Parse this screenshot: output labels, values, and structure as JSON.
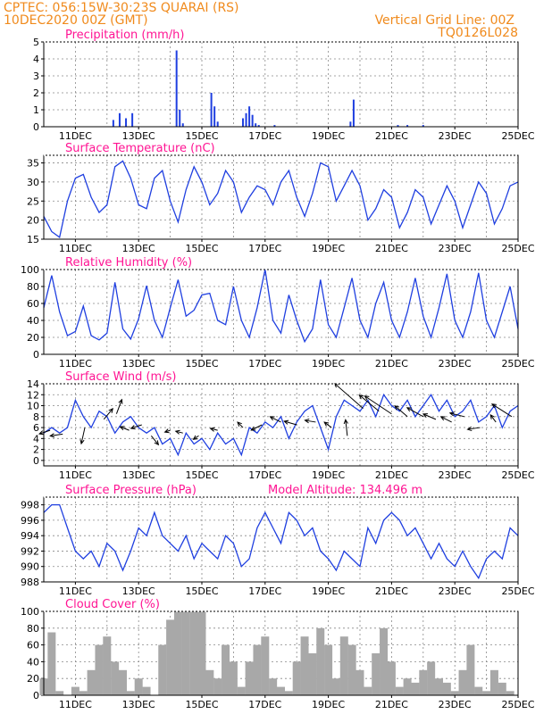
{
  "header": {
    "line1_left": "CPTEC:   056:15W-30:23S   QUARAI (RS)",
    "line2_left": "10DEC2020 00Z (GMT)",
    "line1_right": "Vertical Grid Line: 00Z",
    "line2_right": "TQ0126L028"
  },
  "date_ticks": [
    "11DEC",
    "13DEC",
    "15DEC",
    "17DEC",
    "19DEC",
    "21DEC",
    "23DEC",
    "25DEC"
  ],
  "colors": {
    "series": "#1f3fe0",
    "cloud": "#a8a8a8",
    "title": "#ff1493",
    "header": "#f08a1c"
  },
  "chart_data": [
    {
      "type": "bar",
      "title": "Precipitation (mm/h)",
      "ylim": [
        0,
        5
      ],
      "yticks": [
        0,
        1,
        2,
        3,
        4,
        5
      ],
      "x": [
        2.2,
        2.4,
        2.6,
        2.8,
        4.2,
        4.3,
        4.4,
        5.3,
        5.4,
        5.5,
        6.3,
        6.4,
        6.5,
        6.6,
        6.7,
        6.8,
        7.3,
        9.7,
        9.8,
        11.2,
        11.5,
        12.0
      ],
      "values": [
        0.4,
        0.8,
        0.5,
        0.8,
        4.5,
        1.0,
        0.2,
        2.0,
        1.2,
        0.3,
        0.5,
        0.8,
        1.2,
        0.7,
        0.2,
        0.1,
        0.1,
        0.3,
        1.6,
        0.1,
        0.1,
        0.1
      ]
    },
    {
      "type": "line",
      "title": "Surface Temperature (nC)",
      "ylim": [
        15,
        37
      ],
      "yticks": [
        15,
        20,
        25,
        30,
        35
      ],
      "x": [
        0,
        0.25,
        0.5,
        0.75,
        1.0,
        1.25,
        1.5,
        1.75,
        2.0,
        2.25,
        2.5,
        2.75,
        3.0,
        3.25,
        3.5,
        3.75,
        4.0,
        4.25,
        4.5,
        4.75,
        5.0,
        5.25,
        5.5,
        5.75,
        6.0,
        6.25,
        6.5,
        6.75,
        7.0,
        7.25,
        7.5,
        7.75,
        8.0,
        8.25,
        8.5,
        8.75,
        9.0,
        9.25,
        9.5,
        9.75,
        10.0,
        10.25,
        10.5,
        10.75,
        11.0,
        11.25,
        11.5,
        11.75,
        12.0,
        12.25,
        12.5,
        12.75,
        13.0,
        13.25,
        13.5,
        13.75,
        14.0,
        14.25,
        14.5,
        14.75,
        15.0
      ],
      "values": [
        21,
        17,
        15.5,
        25,
        31,
        32,
        26,
        22,
        24,
        34,
        35.5,
        31,
        24,
        23,
        31,
        33,
        25,
        19.5,
        28,
        34,
        30,
        24,
        27,
        33,
        30,
        22,
        26,
        29,
        28,
        24,
        30,
        33,
        26,
        21,
        27,
        35,
        34,
        25,
        29,
        33,
        29,
        20,
        23,
        28,
        26,
        18,
        22,
        28,
        26,
        19,
        24,
        29,
        25,
        18,
        24,
        30,
        27,
        19,
        23,
        29,
        30
      ]
    },
    {
      "type": "line",
      "title": "Relative Humidity (%)",
      "ylim": [
        0,
        100
      ],
      "yticks": [
        0,
        20,
        40,
        60,
        80,
        100
      ],
      "x": [
        0,
        0.25,
        0.5,
        0.75,
        1.0,
        1.25,
        1.5,
        1.75,
        2.0,
        2.25,
        2.5,
        2.75,
        3.0,
        3.25,
        3.5,
        3.75,
        4.0,
        4.25,
        4.5,
        4.75,
        5.0,
        5.25,
        5.5,
        5.75,
        6.0,
        6.25,
        6.5,
        6.75,
        7.0,
        7.25,
        7.5,
        7.75,
        8.0,
        8.25,
        8.5,
        8.75,
        9.0,
        9.25,
        9.5,
        9.75,
        10.0,
        10.25,
        10.5,
        10.75,
        11.0,
        11.25,
        11.5,
        11.75,
        12.0,
        12.25,
        12.5,
        12.75,
        13.0,
        13.25,
        13.5,
        13.75,
        14.0,
        14.25,
        14.5,
        14.75,
        15.0
      ],
      "values": [
        55,
        93,
        50,
        22,
        27,
        57,
        22,
        17,
        25,
        85,
        30,
        18,
        42,
        81,
        40,
        20,
        55,
        88,
        45,
        52,
        70,
        72,
        40,
        35,
        80,
        40,
        20,
        55,
        100,
        40,
        25,
        70,
        40,
        15,
        30,
        88,
        35,
        20,
        55,
        90,
        40,
        20,
        60,
        85,
        40,
        20,
        50,
        90,
        45,
        20,
        55,
        95,
        40,
        20,
        50,
        96,
        40,
        20,
        50,
        80,
        30
      ]
    },
    {
      "type": "line",
      "title": "Surface Wind (m/s)",
      "ylim": [
        -1,
        14
      ],
      "yticks": [
        0,
        2,
        4,
        6,
        8,
        10,
        12,
        14
      ],
      "x": [
        0,
        0.25,
        0.5,
        0.75,
        1.0,
        1.25,
        1.5,
        1.75,
        2.0,
        2.25,
        2.5,
        2.75,
        3.0,
        3.25,
        3.5,
        3.75,
        4.0,
        4.25,
        4.5,
        4.75,
        5.0,
        5.25,
        5.5,
        5.75,
        6.0,
        6.25,
        6.5,
        6.75,
        7.0,
        7.25,
        7.5,
        7.75,
        8.0,
        8.25,
        8.5,
        8.75,
        9.0,
        9.25,
        9.5,
        9.75,
        10.0,
        10.25,
        10.5,
        10.75,
        11.0,
        11.25,
        11.5,
        11.75,
        12.0,
        12.25,
        12.5,
        12.75,
        13.0,
        13.25,
        13.5,
        13.75,
        14.0,
        14.25,
        14.5,
        14.75,
        15.0
      ],
      "values": [
        5,
        6,
        5,
        6,
        11,
        8,
        6,
        9,
        8,
        5,
        7,
        8,
        6,
        5,
        6,
        3,
        4,
        1,
        5,
        3,
        4,
        2,
        5,
        3,
        4,
        1,
        6,
        5,
        7,
        6,
        8,
        4,
        7,
        9,
        10,
        6,
        2,
        8,
        11,
        10,
        9,
        11,
        8,
        12,
        10,
        9,
        11,
        8,
        10,
        12,
        9,
        11,
        8,
        9,
        11,
        7,
        8,
        10,
        6,
        9,
        10
      ]
    },
    {
      "type": "line",
      "title": "Surface Pressure (hPa)",
      "annotation": "Model Altitude: 134.496 m",
      "ylim": [
        988,
        999
      ],
      "yticks": [
        988,
        990,
        992,
        994,
        996,
        998
      ],
      "x": [
        0,
        0.25,
        0.5,
        0.75,
        1.0,
        1.25,
        1.5,
        1.75,
        2.0,
        2.25,
        2.5,
        2.75,
        3.0,
        3.25,
        3.5,
        3.75,
        4.0,
        4.25,
        4.5,
        4.75,
        5.0,
        5.25,
        5.5,
        5.75,
        6.0,
        6.25,
        6.5,
        6.75,
        7.0,
        7.25,
        7.5,
        7.75,
        8.0,
        8.25,
        8.5,
        8.75,
        9.0,
        9.25,
        9.5,
        9.75,
        10.0,
        10.25,
        10.5,
        10.75,
        11.0,
        11.25,
        11.5,
        11.75,
        12.0,
        12.25,
        12.5,
        12.75,
        13.0,
        13.25,
        13.5,
        13.75,
        14.0,
        14.25,
        14.5,
        14.75,
        15.0
      ],
      "values": [
        997,
        998,
        998,
        995,
        992,
        991,
        992,
        990,
        993,
        992,
        989.5,
        992,
        995,
        994,
        997,
        994,
        993,
        992,
        994,
        991,
        993,
        992,
        991,
        994,
        993,
        990,
        991,
        995,
        997,
        995,
        993,
        997,
        996,
        994,
        995,
        992,
        991,
        989.5,
        992,
        991,
        990,
        995,
        993,
        996,
        997,
        996,
        994,
        995,
        993,
        991,
        993,
        991,
        990,
        992,
        990,
        988.5,
        991,
        992,
        991,
        995,
        994
      ]
    },
    {
      "type": "area",
      "title": "Cloud Cover (%)",
      "ylim": [
        0,
        100
      ],
      "yticks": [
        0,
        20,
        40,
        60,
        80,
        100
      ],
      "x": [
        0,
        0.25,
        0.5,
        0.75,
        1.0,
        1.25,
        1.5,
        1.75,
        2.0,
        2.25,
        2.5,
        2.75,
        3.0,
        3.25,
        3.5,
        3.75,
        4.0,
        4.25,
        4.5,
        4.75,
        5.0,
        5.25,
        5.5,
        5.75,
        6.0,
        6.25,
        6.5,
        6.75,
        7.0,
        7.25,
        7.5,
        7.75,
        8.0,
        8.25,
        8.5,
        8.75,
        9.0,
        9.25,
        9.5,
        9.75,
        10.0,
        10.25,
        10.5,
        10.75,
        11.0,
        11.25,
        11.5,
        11.75,
        12.0,
        12.25,
        12.5,
        12.75,
        13.0,
        13.25,
        13.5,
        13.75,
        14.0,
        14.25,
        14.5,
        14.75,
        15.0
      ],
      "values": [
        20,
        75,
        5,
        0,
        10,
        5,
        30,
        60,
        70,
        40,
        30,
        5,
        20,
        10,
        0,
        60,
        90,
        100,
        100,
        100,
        100,
        30,
        20,
        60,
        40,
        10,
        40,
        60,
        70,
        20,
        10,
        5,
        40,
        70,
        50,
        80,
        60,
        20,
        70,
        60,
        30,
        10,
        50,
        80,
        40,
        10,
        20,
        15,
        30,
        40,
        20,
        15,
        5,
        30,
        60,
        10,
        5,
        30,
        15,
        5,
        0
      ]
    }
  ],
  "wind_arrows": [
    {
      "x": 0.2,
      "y": 5.5,
      "dx": -12,
      "dy": 4
    },
    {
      "x": 0.6,
      "y": 4.8,
      "dx": -14,
      "dy": 2
    },
    {
      "x": 1.3,
      "y": 6.0,
      "dx": -4,
      "dy": 18
    },
    {
      "x": 1.9,
      "y": 7.5,
      "dx": 10,
      "dy": -12
    },
    {
      "x": 2.3,
      "y": 8.5,
      "dx": 6,
      "dy": -16
    },
    {
      "x": 2.7,
      "y": 5.5,
      "dx": -10,
      "dy": -4
    },
    {
      "x": 3.1,
      "y": 6.5,
      "dx": -12,
      "dy": 4
    },
    {
      "x": 3.4,
      "y": 4.5,
      "dx": 8,
      "dy": 10
    },
    {
      "x": 4.0,
      "y": 5.5,
      "dx": -6,
      "dy": 2
    },
    {
      "x": 4.4,
      "y": 5.0,
      "dx": -8,
      "dy": -2
    },
    {
      "x": 4.9,
      "y": 4.5,
      "dx": -6,
      "dy": 4
    },
    {
      "x": 5.5,
      "y": 5.5,
      "dx": -8,
      "dy": -2
    },
    {
      "x": 6.3,
      "y": 6.0,
      "dx": -6,
      "dy": -6
    },
    {
      "x": 6.9,
      "y": 6.5,
      "dx": -12,
      "dy": 6
    },
    {
      "x": 7.5,
      "y": 7.0,
      "dx": -12,
      "dy": -6
    },
    {
      "x": 8.0,
      "y": 6.5,
      "dx": -14,
      "dy": -4
    },
    {
      "x": 8.6,
      "y": 7.0,
      "dx": -12,
      "dy": -2
    },
    {
      "x": 9.1,
      "y": 6.0,
      "dx": -8,
      "dy": -6
    },
    {
      "x": 9.6,
      "y": 4.5,
      "dx": -2,
      "dy": -18
    },
    {
      "x": 10.1,
      "y": 9.5,
      "dx": -32,
      "dy": -28
    },
    {
      "x": 10.6,
      "y": 9.0,
      "dx": -22,
      "dy": -18
    },
    {
      "x": 11.0,
      "y": 8.5,
      "dx": -30,
      "dy": -20
    },
    {
      "x": 11.5,
      "y": 8.0,
      "dx": -14,
      "dy": -12
    },
    {
      "x": 12.0,
      "y": 8.0,
      "dx": -18,
      "dy": -10
    },
    {
      "x": 12.4,
      "y": 7.5,
      "dx": -14,
      "dy": -6
    },
    {
      "x": 12.9,
      "y": 7.0,
      "dx": -12,
      "dy": -6
    },
    {
      "x": 13.3,
      "y": 8.0,
      "dx": -16,
      "dy": -4
    },
    {
      "x": 13.8,
      "y": 6.0,
      "dx": -14,
      "dy": 2
    },
    {
      "x": 14.3,
      "y": 7.0,
      "dx": -6,
      "dy": -8
    },
    {
      "x": 14.8,
      "y": 8.0,
      "dx": -22,
      "dy": -14
    }
  ]
}
